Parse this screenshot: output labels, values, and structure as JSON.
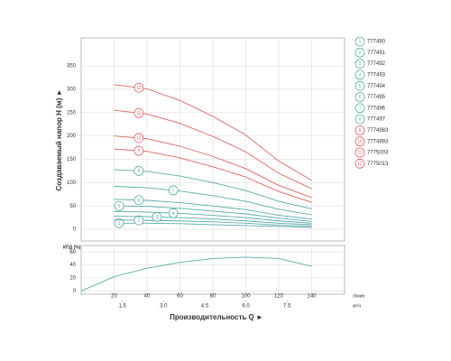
{
  "chart_data": [
    {
      "type": "line",
      "ylabel": "Создаваемый напор H (м) ►",
      "x": [
        20,
        40,
        60,
        80,
        100,
        120,
        140
      ],
      "ylim": [
        -25,
        410
      ],
      "yticks": [
        0,
        50,
        100,
        150,
        200,
        250,
        300,
        350
      ],
      "grid": true,
      "series": [
        {
          "label": "1",
          "name": "777490",
          "color": "#5aaba9",
          "values": [
            13,
            13,
            12,
            10,
            8,
            6,
            4
          ]
        },
        {
          "label": "2",
          "name": "777491",
          "color": "#5aaba9",
          "values": [
            20,
            19,
            18,
            16,
            13,
            9,
            7
          ]
        },
        {
          "label": "3",
          "name": "777492",
          "color": "#5aaba9",
          "values": [
            28,
            27,
            25,
            22,
            18,
            13,
            10
          ]
        },
        {
          "label": "4",
          "name": "777493",
          "color": "#5aaba9",
          "values": [
            38,
            37,
            34,
            30,
            25,
            18,
            13
          ]
        },
        {
          "label": "5",
          "name": "777494",
          "color": "#5aaba9",
          "values": [
            50,
            49,
            45,
            39,
            33,
            24,
            17
          ]
        },
        {
          "label": "6",
          "name": "777495",
          "color": "#5aaba9",
          "values": [
            64,
            62,
            57,
            50,
            42,
            30,
            22
          ]
        },
        {
          "label": "7",
          "name": "777496",
          "color": "#5aaba9",
          "values": [
            92,
            89,
            82,
            72,
            60,
            43,
            31
          ]
        },
        {
          "label": "8",
          "name": "777497",
          "color": "#5aaba9",
          "values": [
            128,
            124,
            114,
            100,
            83,
            60,
            44
          ]
        },
        {
          "label": "9",
          "name": "7774983",
          "color": "#e0625e",
          "values": [
            172,
            167,
            153,
            134,
            112,
            81,
            58
          ]
        },
        {
          "label": "10",
          "name": "7774993",
          "color": "#e0625e",
          "values": [
            200,
            194,
            178,
            156,
            130,
            94,
            68
          ]
        },
        {
          "label": "11",
          "name": "7775003",
          "color": "#e0625e",
          "values": [
            255,
            247,
            227,
            199,
            166,
            120,
            87
          ]
        },
        {
          "label": "12",
          "name": "7775013",
          "color": "#e0625e",
          "values": [
            310,
            301,
            276,
            242,
            202,
            146,
            105
          ]
        }
      ]
    },
    {
      "type": "line",
      "ylabel": "КПД (%)",
      "xlabel": "Производительность Q ►",
      "x": [
        0,
        20,
        40,
        60,
        80,
        100,
        120,
        140
      ],
      "values": [
        0,
        22,
        35,
        44,
        50,
        52,
        50,
        38
      ],
      "color": "#5aaba9",
      "xlim": [
        0,
        160
      ],
      "xticks": [
        20,
        40,
        60,
        80,
        100,
        120,
        140
      ],
      "xunit": "л/мин",
      "x2lim": [
        0,
        9.6
      ],
      "x2ticks": [
        1.5,
        {
          "value": 3,
          "label": "3.0"
        },
        4.5,
        {
          "value": 6,
          "label": "6.0"
        },
        7.5
      ],
      "x2unit": "м³/ч",
      "ylim": [
        -5,
        70
      ],
      "yticks": [
        0,
        20,
        40,
        60
      ],
      "grid": true
    }
  ]
}
